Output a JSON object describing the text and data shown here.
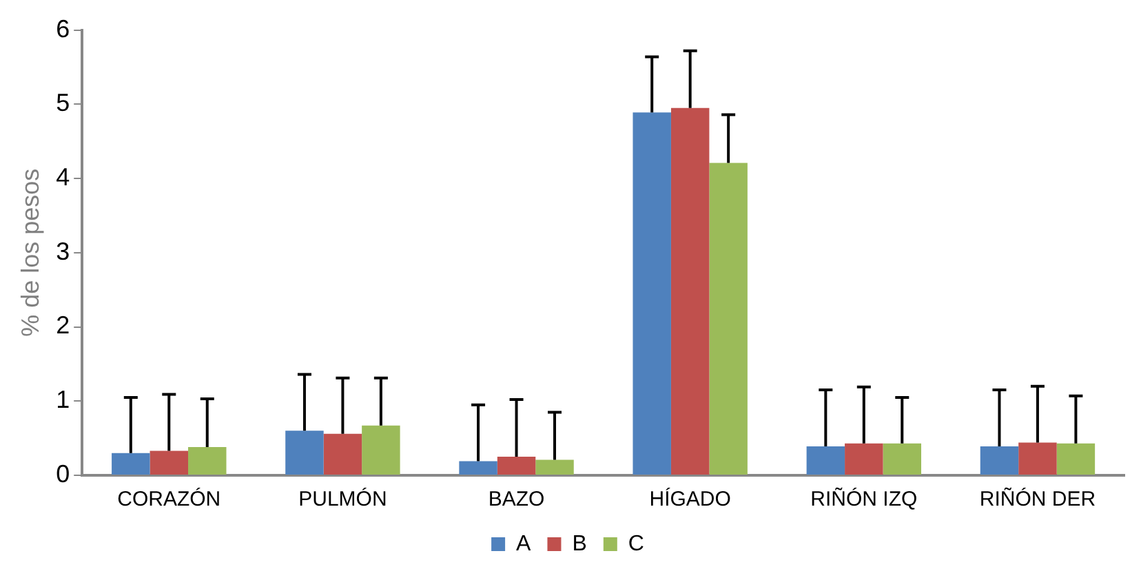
{
  "chart_data": {
    "type": "bar",
    "ylabel": "% de los pesos",
    "categories": [
      "CORAZÓN",
      "PULMÓN",
      "BAZO",
      "HÍGADO",
      "RIÑÓN IZQ",
      "RIÑÓN DER"
    ],
    "series": [
      {
        "name": "A",
        "color": "#4f81bd",
        "values": [
          0.3,
          0.6,
          0.19,
          4.89,
          0.39,
          0.39
        ],
        "errors": [
          [
            0.3,
            1.05
          ],
          [
            0.6,
            1.36
          ],
          [
            0.19,
            0.95
          ],
          [
            4.89,
            5.64
          ],
          [
            0.39,
            1.15
          ],
          [
            0.39,
            1.15
          ]
        ]
      },
      {
        "name": "B",
        "color": "#c0504d",
        "values": [
          0.33,
          0.56,
          0.25,
          4.95,
          0.43,
          0.44
        ],
        "errors": [
          [
            0.33,
            1.09
          ],
          [
            0.56,
            1.31
          ],
          [
            0.25,
            1.02
          ],
          [
            4.95,
            5.72
          ],
          [
            0.43,
            1.19
          ],
          [
            0.44,
            1.2
          ]
        ]
      },
      {
        "name": "C",
        "color": "#9bbb59",
        "values": [
          0.38,
          0.67,
          0.21,
          4.21,
          0.43,
          0.43
        ],
        "errors": [
          [
            0.38,
            1.03
          ],
          [
            0.67,
            1.31
          ],
          [
            0.21,
            0.85
          ],
          [
            4.21,
            4.86
          ],
          [
            0.43,
            1.05
          ],
          [
            0.43,
            1.07
          ]
        ]
      }
    ],
    "ylim": [
      0,
      6
    ],
    "yticks": [
      0,
      1,
      2,
      3,
      4,
      5,
      6
    ],
    "grid": false,
    "legend": "bottom"
  }
}
